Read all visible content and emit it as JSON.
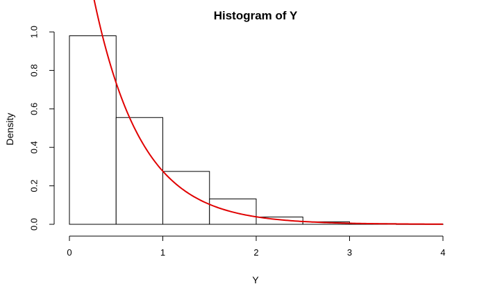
{
  "chart_data": {
    "type": "bar",
    "title": "Histogram of Y",
    "xlabel": "Y",
    "ylabel": "Density",
    "xlim": [
      0,
      4
    ],
    "ylim": [
      0,
      1.0
    ],
    "x_ticks": [
      "0",
      "1",
      "2",
      "3",
      "4"
    ],
    "y_ticks": [
      "0.0",
      "0.2",
      "0.4",
      "0.6",
      "0.8",
      "1.0"
    ],
    "bins": [
      {
        "from": 0.0,
        "to": 0.5,
        "density": 0.98
      },
      {
        "from": 0.5,
        "to": 1.0,
        "density": 0.555
      },
      {
        "from": 1.0,
        "to": 1.5,
        "density": 0.275
      },
      {
        "from": 1.5,
        "to": 2.0,
        "density": 0.132
      },
      {
        "from": 2.0,
        "to": 2.5,
        "density": 0.038
      },
      {
        "from": 2.5,
        "to": 3.0,
        "density": 0.013
      },
      {
        "from": 3.0,
        "to": 3.5,
        "density": 0.004
      },
      {
        "from": 3.5,
        "to": 4.0,
        "density": 0.001
      }
    ],
    "curve": {
      "color": "#e00000",
      "rate": 1.96,
      "x_from": 0.22,
      "x_to": 4.0
    },
    "grid": false,
    "bar_fill": "#ffffff",
    "bar_stroke": "#000000"
  }
}
